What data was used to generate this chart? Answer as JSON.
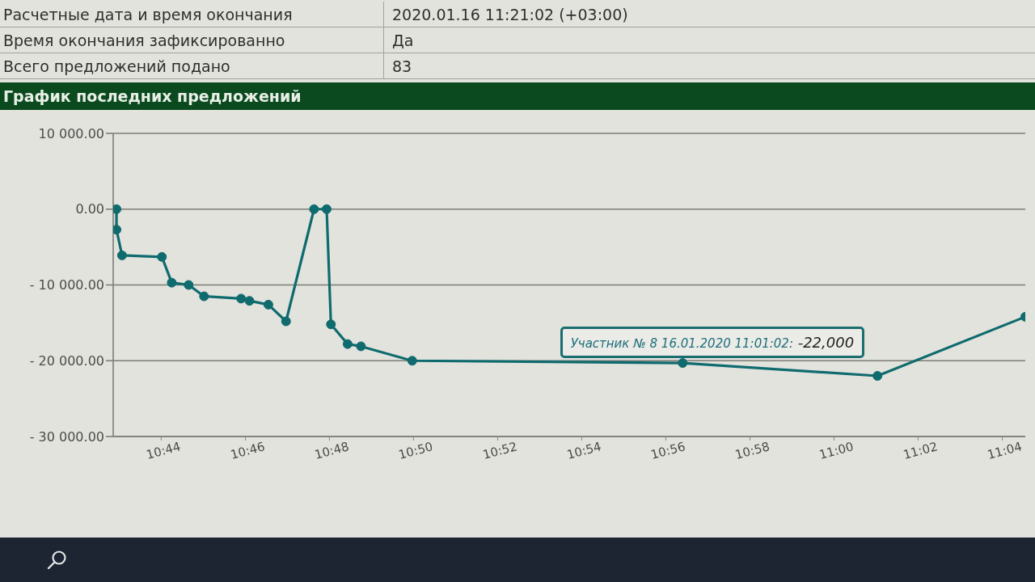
{
  "chart_data": {
    "type": "line",
    "title": "График последних предложений",
    "x": [
      10.7156,
      10.7156,
      10.7178,
      10.7336,
      10.7375,
      10.7442,
      10.7503,
      10.765,
      10.7683,
      10.7758,
      10.7828,
      10.7939,
      10.7989,
      10.8006,
      10.8072,
      10.8125,
      10.8328,
      10.94,
      11.0172,
      11.0758
    ],
    "values": [
      0,
      -2700,
      -6100,
      -6300,
      -9700,
      -10000,
      -11500,
      -11800,
      -12100,
      -12600,
      -14800,
      0,
      0,
      -15200,
      -17800,
      -18100,
      -20000,
      -20300,
      -22000,
      -14200
    ],
    "color": "#0f6b6e",
    "xlim": [
      10.7143,
      11.0758
    ],
    "xticks": [
      {
        "value": 10.7333,
        "label": "10:44"
      },
      {
        "value": 10.7667,
        "label": "10:46"
      },
      {
        "value": 10.8,
        "label": "10:48"
      },
      {
        "value": 10.8333,
        "label": "10:50"
      },
      {
        "value": 10.8667,
        "label": "10:52"
      },
      {
        "value": 10.9,
        "label": "10:54"
      },
      {
        "value": 10.9333,
        "label": "10:56"
      },
      {
        "value": 10.9667,
        "label": "10:58"
      },
      {
        "value": 11,
        "label": "11:00"
      },
      {
        "value": 11.0333,
        "label": "11:02"
      },
      {
        "value": 11.0667,
        "label": "11:04"
      }
    ],
    "ylim": [
      -30000,
      10000
    ],
    "yticks": [
      {
        "value": 10000,
        "label": "10 000.00"
      },
      {
        "value": 0,
        "label": "0.00"
      },
      {
        "value": -10000,
        "label": "- 10 000.00"
      },
      {
        "value": -20000,
        "label": "- 20 000.00"
      },
      {
        "value": -30000,
        "label": "- 30 000.00"
      }
    ],
    "grid": "y",
    "marker": "circle",
    "line_style": "solid",
    "annotations": [
      "Расчетные дата и время окончания",
      "2020.01.16 11:21:02 (+03:00)",
      "Время окончания зафиксированно",
      "Да",
      "Всего предложений подано",
      "83",
      {
        "text": "Участник № 8 16.01.2020 11:01:02: -22,000",
        "x": 11.0172,
        "y": -22000
      }
    ]
  }
}
